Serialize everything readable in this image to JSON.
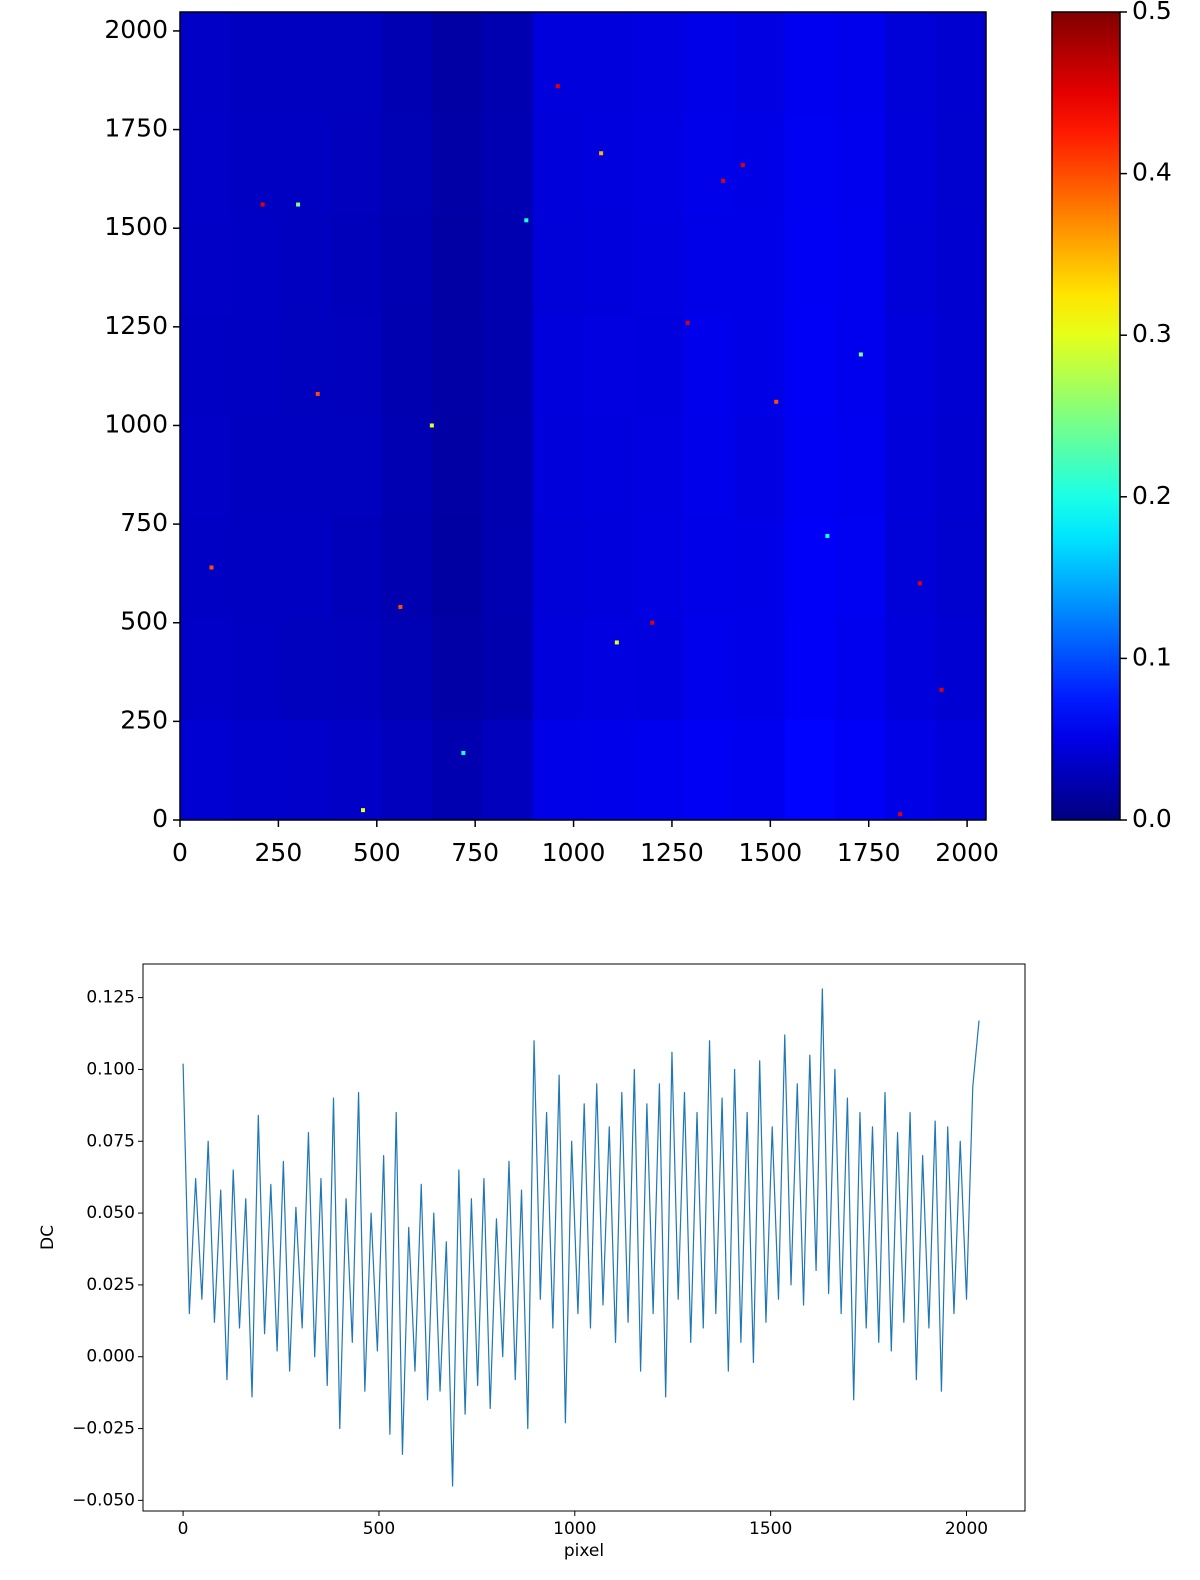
{
  "chart_data": [
    {
      "type": "heatmap",
      "colormap": "jet",
      "x_bins": [
        0,
        128,
        256,
        384,
        512,
        640,
        768,
        896,
        1024,
        1152,
        1280,
        1408,
        1536,
        1664,
        1792,
        1920,
        2048
      ],
      "y_bins": [
        0,
        256,
        512,
        768,
        1024,
        1280,
        1536,
        1792,
        2048
      ],
      "z": [
        [
          0.041,
          0.038,
          0.037,
          0.035,
          0.03,
          0.024,
          0.03,
          0.051,
          0.052,
          0.054,
          0.057,
          0.055,
          0.064,
          0.06,
          0.05,
          0.046
        ],
        [
          0.036,
          0.034,
          0.031,
          0.03,
          0.026,
          0.019,
          0.023,
          0.046,
          0.048,
          0.047,
          0.053,
          0.051,
          0.06,
          0.054,
          0.046,
          0.041
        ],
        [
          0.034,
          0.033,
          0.033,
          0.029,
          0.024,
          0.017,
          0.025,
          0.044,
          0.046,
          0.049,
          0.051,
          0.05,
          0.059,
          0.056,
          0.044,
          0.039
        ],
        [
          0.035,
          0.032,
          0.032,
          0.031,
          0.025,
          0.018,
          0.024,
          0.045,
          0.047,
          0.048,
          0.052,
          0.049,
          0.057,
          0.055,
          0.045,
          0.04
        ],
        [
          0.034,
          0.033,
          0.031,
          0.03,
          0.024,
          0.019,
          0.023,
          0.046,
          0.048,
          0.047,
          0.053,
          0.05,
          0.058,
          0.054,
          0.046,
          0.041
        ],
        [
          0.035,
          0.034,
          0.032,
          0.029,
          0.025,
          0.018,
          0.024,
          0.044,
          0.046,
          0.048,
          0.051,
          0.051,
          0.057,
          0.055,
          0.044,
          0.04
        ],
        [
          0.036,
          0.033,
          0.033,
          0.03,
          0.026,
          0.019,
          0.025,
          0.045,
          0.047,
          0.049,
          0.052,
          0.05,
          0.056,
          0.054,
          0.045,
          0.039
        ],
        [
          0.035,
          0.032,
          0.032,
          0.031,
          0.025,
          0.018,
          0.024,
          0.046,
          0.046,
          0.048,
          0.051,
          0.049,
          0.055,
          0.053,
          0.044,
          0.04
        ]
      ],
      "points": {
        "x": [
          300,
          1290,
          1645,
          560,
          720,
          1830,
          1935,
          465,
          880,
          1380,
          210,
          1070,
          1515,
          1730,
          640,
          1200,
          1430,
          960,
          80,
          1880,
          350,
          1110
        ],
        "y": [
          1560,
          1260,
          720,
          540,
          170,
          15,
          330,
          25,
          1520,
          1620,
          1560,
          1690,
          1060,
          1180,
          1000,
          500,
          1660,
          1860,
          640,
          600,
          1080,
          450
        ],
        "values": [
          0.25,
          0.45,
          0.2,
          0.4,
          0.2,
          0.45,
          0.45,
          0.3,
          0.2,
          0.45,
          0.45,
          0.35,
          0.4,
          0.25,
          0.3,
          0.45,
          0.45,
          0.45,
          0.4,
          0.45,
          0.4,
          0.3
        ]
      },
      "xlim": [
        0,
        2048
      ],
      "ylim": [
        0,
        2048
      ],
      "xticks": [
        0,
        250,
        500,
        750,
        1000,
        1250,
        1500,
        1750,
        2000
      ],
      "yticks": [
        0,
        250,
        500,
        750,
        1000,
        1250,
        1500,
        1750,
        2000
      ],
      "clim": [
        0,
        0.5
      ],
      "cticks": [
        {
          "value": 0,
          "label": "0.0"
        },
        0.1,
        0.2,
        0.3,
        0.4,
        0.5
      ]
    },
    {
      "type": "line",
      "xlabel": "pixel",
      "ylabel": "DC",
      "x": [
        0,
        16,
        32,
        48,
        64,
        80,
        96,
        112,
        128,
        144,
        160,
        176,
        192,
        208,
        224,
        240,
        256,
        272,
        288,
        304,
        320,
        336,
        352,
        368,
        384,
        400,
        416,
        432,
        448,
        464,
        480,
        496,
        512,
        528,
        544,
        560,
        576,
        592,
        608,
        624,
        640,
        656,
        672,
        688,
        704,
        720,
        736,
        752,
        768,
        784,
        800,
        816,
        832,
        848,
        864,
        880,
        896,
        912,
        928,
        944,
        960,
        976,
        992,
        1008,
        1024,
        1040,
        1056,
        1072,
        1088,
        1104,
        1120,
        1136,
        1152,
        1168,
        1184,
        1200,
        1216,
        1232,
        1248,
        1264,
        1280,
        1296,
        1312,
        1328,
        1344,
        1360,
        1376,
        1392,
        1408,
        1424,
        1440,
        1456,
        1472,
        1488,
        1504,
        1520,
        1536,
        1552,
        1568,
        1584,
        1600,
        1616,
        1632,
        1648,
        1664,
        1680,
        1696,
        1712,
        1728,
        1744,
        1760,
        1776,
        1792,
        1808,
        1824,
        1840,
        1856,
        1872,
        1888,
        1904,
        1920,
        1936,
        1952,
        1968,
        1984,
        2000,
        2016,
        2032
      ],
      "series": [
        {
          "color": "#1f77b4",
          "values": [
            0.102,
            0.015,
            0.062,
            0.02,
            0.075,
            0.012,
            0.058,
            -0.008,
            0.065,
            0.01,
            0.055,
            -0.014,
            0.084,
            0.008,
            0.06,
            0.002,
            0.068,
            -0.005,
            0.052,
            0.01,
            0.078,
            0.0,
            0.062,
            -0.01,
            0.09,
            -0.025,
            0.055,
            0.005,
            0.092,
            -0.012,
            0.05,
            0.002,
            0.07,
            -0.027,
            0.085,
            -0.034,
            0.045,
            -0.005,
            0.06,
            -0.015,
            0.05,
            -0.012,
            0.04,
            -0.045,
            0.065,
            -0.02,
            0.055,
            -0.01,
            0.062,
            -0.018,
            0.048,
            0.0,
            0.068,
            -0.008,
            0.058,
            -0.025,
            0.11,
            0.02,
            0.085,
            0.01,
            0.098,
            -0.023,
            0.075,
            0.015,
            0.088,
            0.01,
            0.095,
            0.018,
            0.08,
            0.005,
            0.092,
            0.012,
            0.1,
            -0.005,
            0.088,
            0.015,
            0.095,
            -0.014,
            0.106,
            0.02,
            0.092,
            0.005,
            0.085,
            0.01,
            0.11,
            0.015,
            0.09,
            -0.005,
            0.1,
            0.005,
            0.085,
            -0.002,
            0.103,
            0.012,
            0.08,
            0.02,
            0.112,
            0.025,
            0.095,
            0.018,
            0.105,
            0.03,
            0.128,
            0.022,
            0.1,
            0.015,
            0.09,
            -0.015,
            0.085,
            0.01,
            0.08,
            0.005,
            0.092,
            0.002,
            0.078,
            0.012,
            0.085,
            -0.008,
            0.07,
            0.01,
            0.082,
            -0.012,
            0.08,
            0.015,
            0.075,
            0.02,
            0.094,
            0.117
          ]
        }
      ],
      "xlim": [
        -102.35,
        2149.35
      ],
      "ylim": [
        -0.0537,
        0.1367
      ],
      "xticks": [
        0,
        500,
        1000,
        1500,
        2000
      ],
      "yticks": [
        {
          "value": -0.05,
          "label": "−0.050"
        },
        {
          "value": -0.025,
          "label": "−0.025"
        },
        {
          "value": 0,
          "label": "0.000"
        },
        {
          "value": 0.025,
          "label": "0.025"
        },
        {
          "value": 0.05,
          "label": "0.050"
        },
        {
          "value": 0.075,
          "label": "0.075"
        },
        {
          "value": 0.1,
          "label": "0.100"
        },
        0.125
      ]
    }
  ]
}
